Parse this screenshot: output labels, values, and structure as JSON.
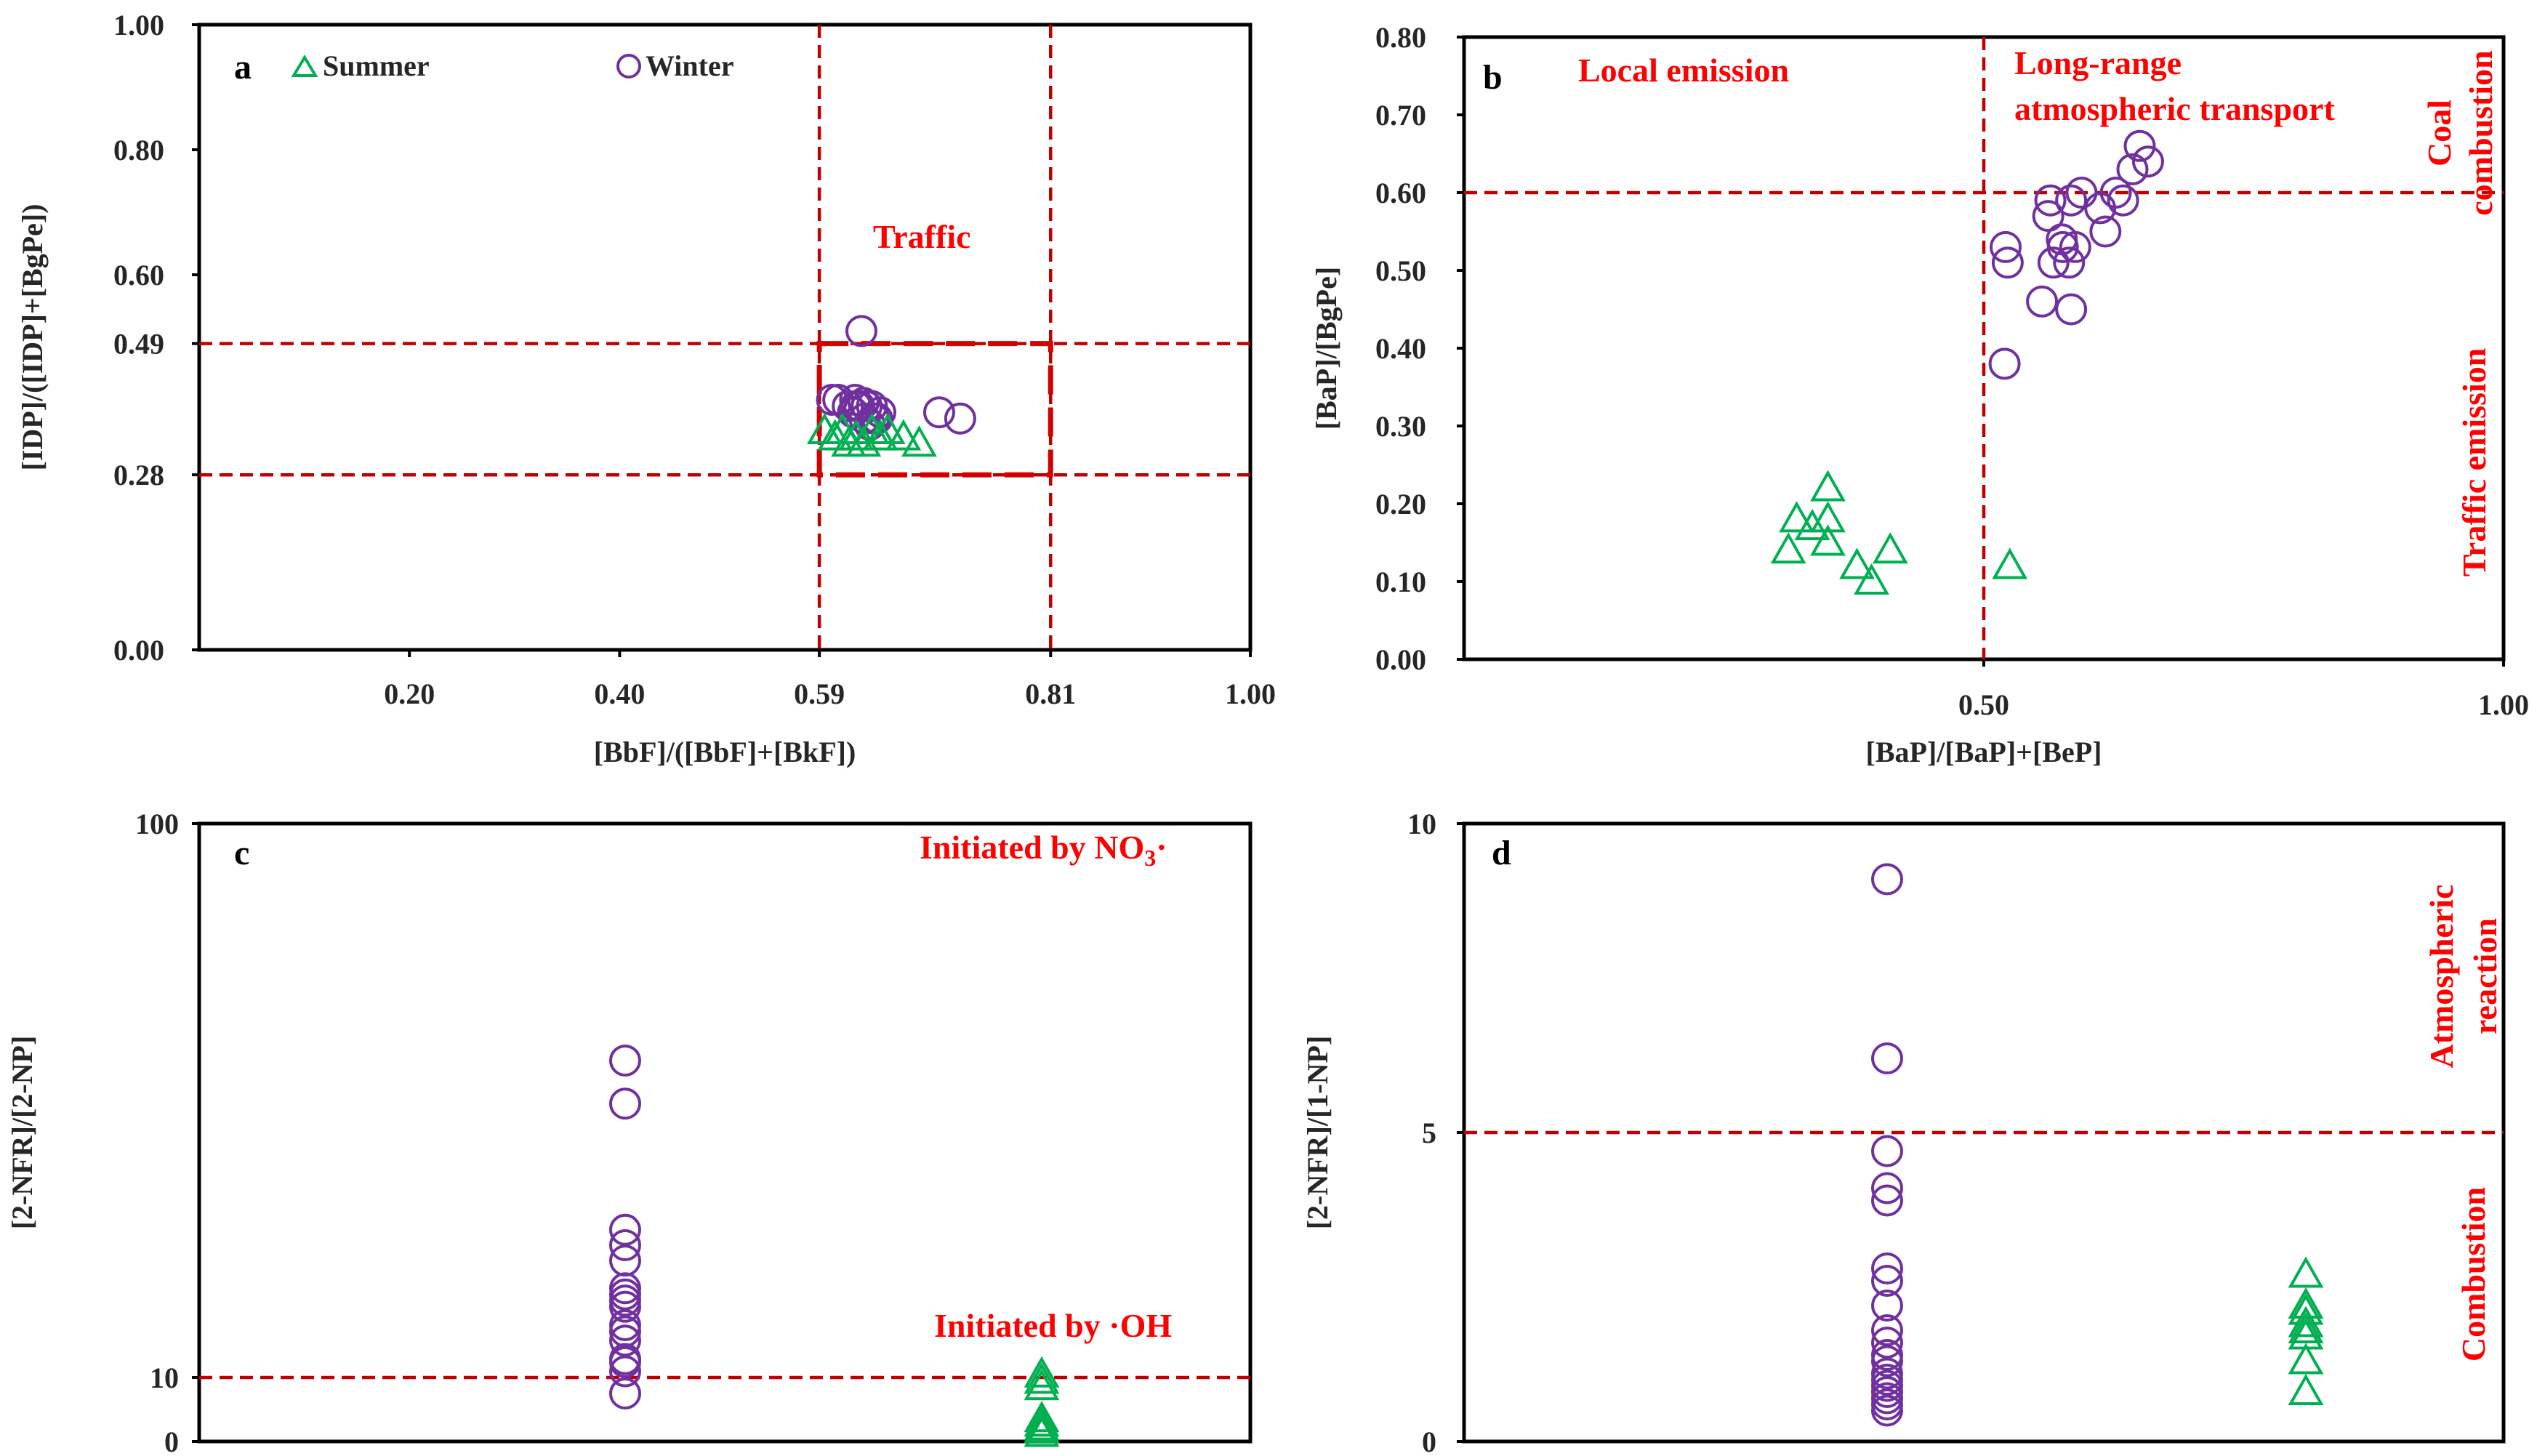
{
  "colors": {
    "winter": "#7030a0",
    "summer": "#00b050",
    "reference": "#c00000",
    "annotation": "#ff0000"
  },
  "legend": {
    "summer_label": "Summer",
    "winter_label": "Winter"
  },
  "chart_data": [
    {
      "panel": "a",
      "type": "scatter",
      "xlabel": "[BbF]/([BbF]+[BkF])",
      "ylabel": "[IDP]/([IDP]+[BgPe])",
      "xlim": [
        0,
        1.0
      ],
      "ylim": [
        0,
        1.0
      ],
      "xticks": [
        0.2,
        0.4,
        0.59,
        0.81,
        1.0
      ],
      "xtick_labels": [
        "0.20",
        "0.40",
        "0.59",
        "0.81",
        "1.00"
      ],
      "yticks": [
        0,
        0.28,
        0.49,
        0.6,
        0.8,
        1.0
      ],
      "ytick_labels": [
        "0.00",
        "0.28",
        "0.49",
        "0.60",
        "0.80",
        "1.00"
      ],
      "ref_lines": {
        "vertical": [
          0.59,
          0.81
        ],
        "horizontal": [
          0.28,
          0.49
        ]
      },
      "ref_box": {
        "x": [
          0.59,
          0.81
        ],
        "y": [
          0.28,
          0.49
        ]
      },
      "annotations": [
        {
          "text": "Traffic",
          "x": 0.69,
          "y": 0.66
        }
      ],
      "series": [
        {
          "name": "Winter",
          "marker": "circle",
          "x": [
            0.63,
            0.602,
            0.608,
            0.617,
            0.624,
            0.625,
            0.628,
            0.632,
            0.635,
            0.64,
            0.648,
            0.645,
            0.622,
            0.633,
            0.638,
            0.642,
            0.704,
            0.724
          ],
          "y": [
            0.51,
            0.4,
            0.4,
            0.39,
            0.4,
            0.39,
            0.39,
            0.395,
            0.39,
            0.39,
            0.38,
            0.37,
            0.38,
            0.37,
            0.36,
            0.37,
            0.38,
            0.37
          ]
        },
        {
          "name": "Summer",
          "marker": "triangle",
          "x": [
            0.595,
            0.605,
            0.612,
            0.618,
            0.625,
            0.632,
            0.64,
            0.648,
            0.655,
            0.67,
            0.685
          ],
          "y": [
            0.35,
            0.34,
            0.35,
            0.33,
            0.34,
            0.33,
            0.35,
            0.34,
            0.35,
            0.34,
            0.33
          ]
        }
      ]
    },
    {
      "panel": "b",
      "type": "scatter",
      "xlabel": "[BaP]/[BaP]+[BeP]",
      "ylabel": "[BaP]/[BgPe]",
      "xlim": [
        0,
        1.0
      ],
      "ylim": [
        0,
        0.8
      ],
      "xticks": [
        0.5,
        1.0
      ],
      "xtick_labels": [
        "0.50",
        "1.00"
      ],
      "yticks": [
        0,
        0.1,
        0.2,
        0.3,
        0.4,
        0.5,
        0.6,
        0.7,
        0.8
      ],
      "ytick_labels": [
        "0.00",
        "0.10",
        "0.20",
        "0.30",
        "0.40",
        "0.50",
        "0.60",
        "0.70",
        "0.80"
      ],
      "ref_lines": {
        "vertical": [
          0.5
        ],
        "horizontal": [
          0.6
        ]
      },
      "annotations": [
        {
          "text": "Local emission"
        },
        {
          "text": "Long-range"
        },
        {
          "text": "atmospheric transport"
        },
        {
          "text": "Coal"
        },
        {
          "text": "combustion"
        },
        {
          "text": "Traffic emission"
        }
      ],
      "series": [
        {
          "name": "Winter",
          "marker": "circle",
          "x": [
            0.65,
            0.643,
            0.658,
            0.627,
            0.634,
            0.612,
            0.617,
            0.594,
            0.584,
            0.564,
            0.562,
            0.575,
            0.576,
            0.567,
            0.582,
            0.588,
            0.521,
            0.523,
            0.556,
            0.584,
            0.52
          ],
          "y": [
            0.66,
            0.63,
            0.64,
            0.6,
            0.59,
            0.58,
            0.55,
            0.6,
            0.59,
            0.59,
            0.57,
            0.54,
            0.53,
            0.51,
            0.51,
            0.53,
            0.53,
            0.51,
            0.46,
            0.45,
            0.38
          ]
        },
        {
          "name": "Summer",
          "marker": "triangle",
          "x": [
            0.312,
            0.32,
            0.335,
            0.35,
            0.35,
            0.35,
            0.378,
            0.392,
            0.41,
            0.525
          ],
          "y": [
            0.14,
            0.18,
            0.17,
            0.22,
            0.18,
            0.15,
            0.12,
            0.1,
            0.14,
            0.12
          ]
        }
      ]
    },
    {
      "panel": "c",
      "type": "scatter",
      "xlabel": "",
      "ylabel": "[2-NFR]/[2-NP]",
      "ylim": [
        0,
        100
      ],
      "yticks": [
        0,
        10,
        100
      ],
      "ytick_labels": [
        "0",
        "10",
        "100"
      ],
      "ref_lines": {
        "horizontal": [
          10
        ]
      },
      "annotations": [
        {
          "text": "Initiated  by NO",
          "subscript": "3",
          "suffix": "·"
        },
        {
          "text": "Initiated  by ·OH"
        }
      ],
      "series": [
        {
          "name": "Winter",
          "marker": "circle",
          "y": [
            61.5,
            54.5,
            34.0,
            31.5,
            29.0,
            24.5,
            23.5,
            22.5,
            21.5,
            18.5,
            17.5,
            16.0,
            13.0,
            12.5,
            11.0,
            7.5
          ]
        },
        {
          "name": "Summer",
          "marker": "triangle",
          "y": [
            10.5,
            9.5,
            8.5,
            3.5,
            2.8,
            2.2,
            1.8,
            1.2
          ]
        }
      ]
    },
    {
      "panel": "d",
      "type": "scatter",
      "xlabel": "",
      "ylabel": "[2-NFR]/[1-NP]",
      "ylim": [
        0,
        10
      ],
      "yticks": [
        0,
        5,
        10
      ],
      "ytick_labels": [
        "0",
        "5",
        "10"
      ],
      "ref_lines": {
        "horizontal": [
          5
        ]
      },
      "annotations": [
        {
          "text": "Atmospheric"
        },
        {
          "text": "reaction"
        },
        {
          "text": "Combustion"
        }
      ],
      "series": [
        {
          "name": "Winter",
          "marker": "circle",
          "y": [
            9.1,
            6.2,
            4.7,
            4.1,
            3.9,
            2.8,
            2.6,
            2.2,
            1.8,
            1.6,
            1.4,
            1.3,
            1.1,
            1.0,
            0.9,
            0.8,
            0.7,
            0.6,
            0.5
          ]
        },
        {
          "name": "Summer",
          "marker": "triangle",
          "y": [
            2.7,
            2.2,
            2.1,
            1.9,
            1.8,
            1.7,
            1.3,
            0.8
          ]
        }
      ]
    }
  ]
}
